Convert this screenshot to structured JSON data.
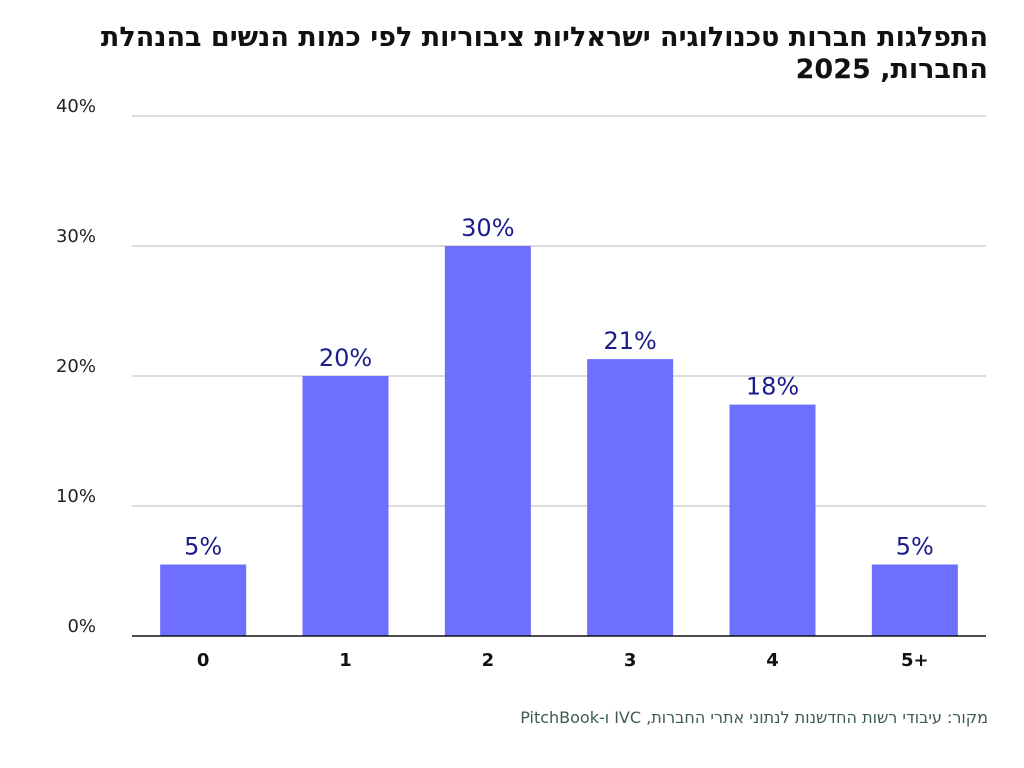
{
  "chart_data": {
    "type": "bar",
    "title": "התפלגות חברות טכנולוגיה ישראליות ציבוריות לפי כמות הנשים בהנהלת החברות, 2025",
    "categories": [
      "0",
      "1",
      "2",
      "3",
      "4",
      "5+"
    ],
    "values": [
      5.5,
      20,
      30,
      21.3,
      17.8,
      5.5
    ],
    "data_labels": [
      "5%",
      "20%",
      "30%",
      "21%",
      "18%",
      "5%"
    ],
    "y_ticks": [
      0,
      10,
      20,
      30,
      40
    ],
    "y_tick_labels": [
      "0%",
      "10%",
      "20%",
      "30%",
      "40%"
    ],
    "ylim": [
      0,
      40
    ],
    "xlabel": "",
    "ylabel": "",
    "grid": true,
    "bar_color": "#6f6fff",
    "label_color": "#1c1c8c",
    "source": "מקור: עיבודי רשות החדשנות לנתוני אתרי החברות, IVC ו-PitchBook"
  }
}
